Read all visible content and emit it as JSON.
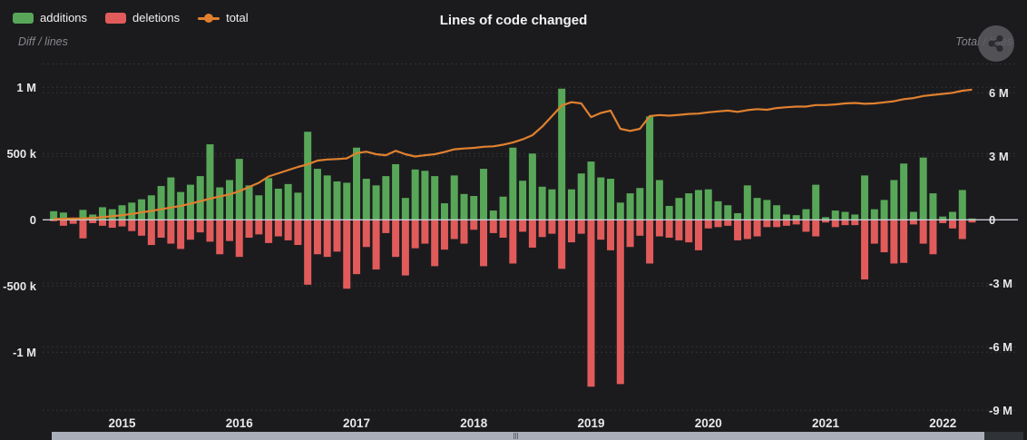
{
  "header": {
    "title": "Lines of code changed",
    "left_axis_title": "Diff / lines",
    "right_axis_title": "Total / lines",
    "export_icon": "share-icon"
  },
  "legend": {
    "items": [
      {
        "label": "additions",
        "color": "#58a758",
        "marker": "box"
      },
      {
        "label": "deletions",
        "color": "#e15b5b",
        "marker": "box"
      },
      {
        "label": "total",
        "color": "#e0802f",
        "marker": "line-dot"
      }
    ]
  },
  "colors": {
    "background": "#1b1b1e",
    "additions": "#58a758",
    "deletions": "#e15b5b",
    "total_line": "#e0802f",
    "grid": "rgba(255,255,255,0.10)",
    "zero_line": "#c9cdd3",
    "axis_text": "#e8e8e8",
    "scrollbar_thumb": "#a9aeb9",
    "scrollbar_track": "#2f3237"
  },
  "chart_data": {
    "type": "bar",
    "subtype": "dual-axis bar + line",
    "title": "Lines of code changed",
    "x": [
      "2014-06",
      "2014-07",
      "2014-08",
      "2014-09",
      "2014-10",
      "2014-11",
      "2014-12",
      "2015-01",
      "2015-02",
      "2015-03",
      "2015-04",
      "2015-05",
      "2015-06",
      "2015-07",
      "2015-08",
      "2015-09",
      "2015-10",
      "2015-11",
      "2015-12",
      "2016-01",
      "2016-02",
      "2016-03",
      "2016-04",
      "2016-05",
      "2016-06",
      "2016-07",
      "2016-08",
      "2016-09",
      "2016-10",
      "2016-11",
      "2016-12",
      "2017-01",
      "2017-02",
      "2017-03",
      "2017-04",
      "2017-05",
      "2017-06",
      "2017-07",
      "2017-08",
      "2017-09",
      "2017-10",
      "2017-11",
      "2017-12",
      "2018-01",
      "2018-02",
      "2018-03",
      "2018-04",
      "2018-05",
      "2018-06",
      "2018-07",
      "2018-08",
      "2018-09",
      "2018-10",
      "2018-11",
      "2018-12",
      "2019-01",
      "2019-02",
      "2019-03",
      "2019-04",
      "2019-05",
      "2019-06",
      "2019-07",
      "2019-08",
      "2019-09",
      "2019-10",
      "2019-11",
      "2019-12",
      "2020-01",
      "2020-02",
      "2020-03",
      "2020-04",
      "2020-05",
      "2020-06",
      "2020-07",
      "2020-08",
      "2020-09",
      "2020-10",
      "2020-11",
      "2020-12",
      "2021-01",
      "2021-02",
      "2021-03",
      "2021-04",
      "2021-05",
      "2021-06",
      "2021-07",
      "2021-08",
      "2021-09",
      "2021-10",
      "2021-11",
      "2021-12",
      "2022-01",
      "2022-02",
      "2022-03",
      "2022-04"
    ],
    "series": [
      {
        "name": "additions",
        "type": "bar",
        "axis": "left",
        "color": "#58a758",
        "values": [
          65000,
          55000,
          15000,
          75000,
          40000,
          95000,
          80000,
          110000,
          130000,
          155000,
          185000,
          255000,
          320000,
          210000,
          265000,
          330000,
          570000,
          245000,
          300000,
          460000,
          260000,
          185000,
          315000,
          235000,
          270000,
          205000,
          665000,
          385000,
          335000,
          290000,
          280000,
          545000,
          310000,
          260000,
          330000,
          420000,
          165000,
          380000,
          370000,
          330000,
          125000,
          335000,
          195000,
          180000,
          385000,
          70000,
          175000,
          545000,
          295000,
          500000,
          250000,
          230000,
          990000,
          230000,
          350000,
          440000,
          320000,
          310000,
          130000,
          200000,
          240000,
          780000,
          300000,
          105000,
          165000,
          200000,
          225000,
          230000,
          140000,
          110000,
          50000,
          260000,
          165000,
          150000,
          110000,
          40000,
          35000,
          80000,
          265000,
          20000,
          70000,
          60000,
          40000,
          335000,
          80000,
          150000,
          300000,
          425000,
          60000,
          470000,
          200000,
          25000,
          60000,
          225000,
          10000
        ]
      },
      {
        "name": "deletions",
        "type": "bar",
        "axis": "left",
        "color": "#e15b5b",
        "values": [
          -10000,
          -45000,
          -30000,
          -140000,
          -25000,
          -45000,
          -60000,
          -50000,
          -85000,
          -120000,
          -190000,
          -135000,
          -180000,
          -220000,
          -150000,
          -95000,
          -165000,
          -260000,
          -160000,
          -280000,
          -135000,
          -110000,
          -175000,
          -125000,
          -155000,
          -190000,
          -490000,
          -260000,
          -280000,
          -240000,
          -520000,
          -410000,
          -205000,
          -375000,
          -100000,
          -280000,
          -420000,
          -215000,
          -180000,
          -350000,
          -225000,
          -145000,
          -180000,
          -75000,
          -350000,
          -100000,
          -135000,
          -330000,
          -90000,
          -210000,
          -130000,
          -105000,
          -370000,
          -170000,
          -105000,
          -1260000,
          -150000,
          -230000,
          -1240000,
          -205000,
          -120000,
          -330000,
          -125000,
          -135000,
          -155000,
          -170000,
          -230000,
          -65000,
          -55000,
          -45000,
          -155000,
          -145000,
          -125000,
          -55000,
          -55000,
          -45000,
          -35000,
          -90000,
          -125000,
          -20000,
          -55000,
          -40000,
          -40000,
          -450000,
          -180000,
          -245000,
          -330000,
          -325000,
          -35000,
          -180000,
          -260000,
          -25000,
          -65000,
          -145000,
          -20000
        ]
      },
      {
        "name": "total",
        "type": "line",
        "axis": "right",
        "color": "#e0802f",
        "values": [
          40000,
          50000,
          60000,
          70000,
          90000,
          130000,
          170000,
          220000,
          280000,
          350000,
          420000,
          500000,
          580000,
          660000,
          760000,
          880000,
          1000000,
          1100000,
          1200000,
          1350000,
          1550000,
          1750000,
          2050000,
          2200000,
          2350000,
          2500000,
          2620000,
          2800000,
          2850000,
          2870000,
          2900000,
          3150000,
          3220000,
          3100000,
          3050000,
          3260000,
          3100000,
          2990000,
          3050000,
          3100000,
          3200000,
          3330000,
          3370000,
          3400000,
          3450000,
          3470000,
          3550000,
          3650000,
          3800000,
          4000000,
          4400000,
          4900000,
          5400000,
          5560000,
          5500000,
          4850000,
          5050000,
          5160000,
          4300000,
          4200000,
          4300000,
          4900000,
          4950000,
          4920000,
          4960000,
          5000000,
          5020000,
          5080000,
          5120000,
          5160000,
          5100000,
          5180000,
          5230000,
          5200000,
          5280000,
          5320000,
          5350000,
          5350000,
          5420000,
          5420000,
          5450000,
          5500000,
          5520000,
          5480000,
          5500000,
          5550000,
          5600000,
          5700000,
          5750000,
          5850000,
          5900000,
          5950000,
          6000000,
          6100000,
          6150000
        ]
      }
    ],
    "x_axis": {
      "tick_labels": [
        "2015",
        "2016",
        "2017",
        "2018",
        "2019",
        "2020",
        "2021",
        "2022"
      ],
      "granularity": "month"
    },
    "left_axis": {
      "title": "Diff / lines",
      "ticks": [
        {
          "v": 1000000,
          "label": "1 M"
        },
        {
          "v": 500000,
          "label": "500 k"
        },
        {
          "v": 0,
          "label": "0"
        },
        {
          "v": -500000,
          "label": "-500 k"
        },
        {
          "v": -1000000,
          "label": "-1 M"
        }
      ],
      "range": [
        -1300000,
        1150000
      ]
    },
    "right_axis": {
      "title": "Total / lines",
      "ticks": [
        {
          "v": 6000000,
          "label": "6 M"
        },
        {
          "v": 3000000,
          "label": "3 M"
        },
        {
          "v": 0,
          "label": "0"
        },
        {
          "v": -3000000,
          "label": "-3 M"
        },
        {
          "v": -6000000,
          "label": "-6 M"
        },
        {
          "v": -9000000,
          "label": "-9 M"
        }
      ],
      "range": [
        -9500000,
        6600000
      ]
    },
    "grid": "dashed horizontal",
    "legend_position": "top-left"
  }
}
